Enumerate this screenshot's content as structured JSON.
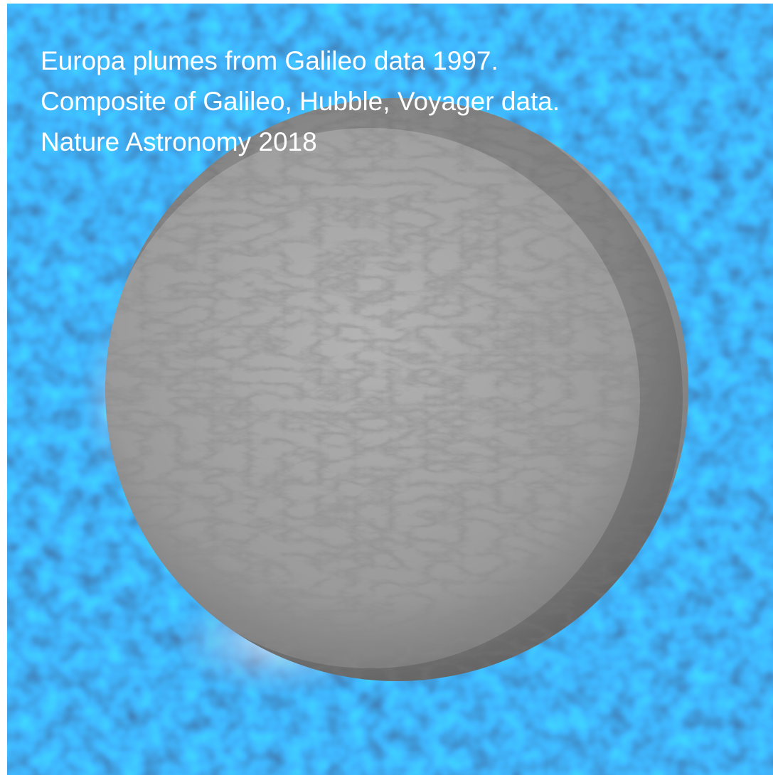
{
  "caption": {
    "lines": [
      "Europa plumes from Galileo data 1997.",
      "Composite of Galileo, Hubble, Voyager data.",
      "Nature Astronomy 2018"
    ]
  }
}
